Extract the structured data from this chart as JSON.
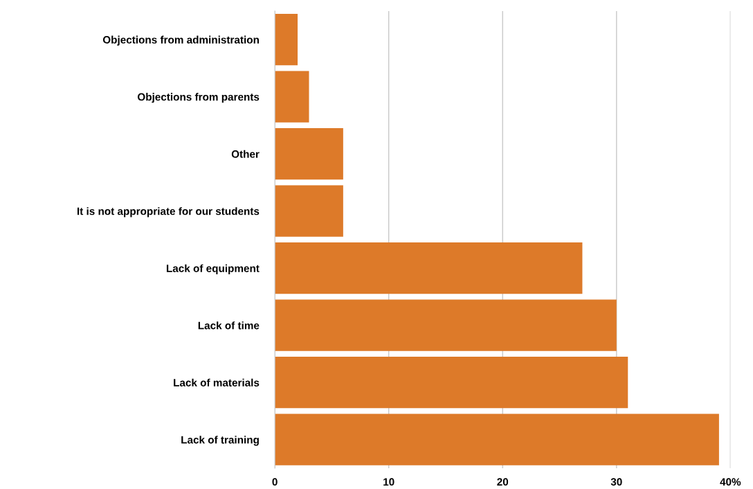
{
  "chart_data": {
    "type": "bar",
    "orientation": "horizontal",
    "categories": [
      "Objections from administration",
      "Objections from parents",
      "Other",
      "It is not appropriate for our students",
      "Lack of equipment",
      "Lack of time",
      "Lack of materials",
      "Lack of training"
    ],
    "values": [
      2,
      3,
      6,
      6,
      27,
      30,
      31,
      39
    ],
    "color": "#dd7a29",
    "xlim": [
      0,
      40
    ],
    "xticks": [
      0,
      10,
      20,
      30,
      {
        "value": 40,
        "label": "40%"
      }
    ],
    "grid": "x"
  }
}
